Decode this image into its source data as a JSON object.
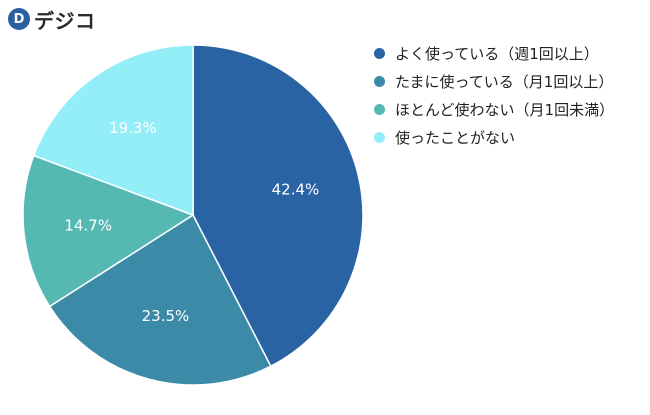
{
  "logo": {
    "mark": "D",
    "text": "デジコ"
  },
  "chart_data": {
    "type": "pie",
    "categories": [
      "よく使っている（週1回以上）",
      "たまに使っている（月1回以上）",
      "ほとんど使わない（月1回未満）",
      "使ったことがない"
    ],
    "values": [
      42.4,
      23.5,
      14.7,
      19.3
    ],
    "labels": [
      "42.4%",
      "23.5%",
      "14.7%",
      "19.3%"
    ],
    "colors": [
      "#2a63a3",
      "#3b8aa8",
      "#55b8b3",
      "#93eef8"
    ],
    "label_color": "#ffffff",
    "start": "top",
    "direction": "clockwise",
    "legend_position": "right"
  }
}
